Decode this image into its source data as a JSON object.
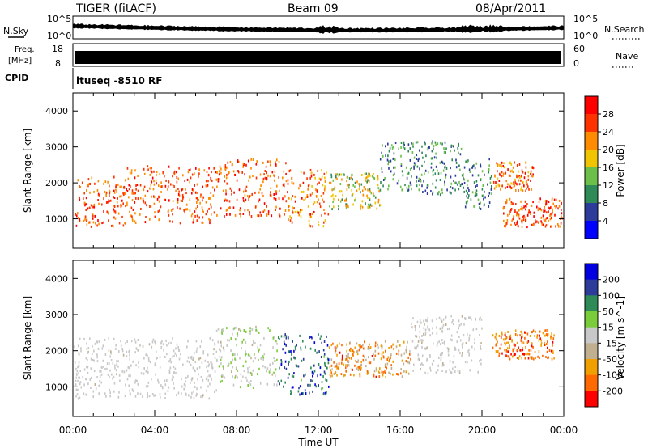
{
  "header": {
    "radar_title": "TIGER (fitACF)",
    "beam_label": "Beam 09",
    "date_label": "08/Apr/2011"
  },
  "top_panels": {
    "nsky_label": "N.Sky",
    "nsearch_label": "N.Search",
    "noise_tick_high": "10^5",
    "noise_tick_low": "10^0",
    "freq_label_1": "Freq.",
    "freq_label_2": "[MHz]",
    "freq_tick_high": "18",
    "freq_tick_low": "8",
    "nave_label": "Nave",
    "nave_tick_high": "60",
    "nave_tick_low": "0",
    "cpid_label": "CPID",
    "cpid_value": "ltuseq -8510 RF"
  },
  "colors": {
    "power_scale": [
      "#0000ff",
      "#2d3c9a",
      "#2e8b57",
      "#6cc04a",
      "#f0c400",
      "#ff8c00",
      "#ff3300",
      "#ff0000"
    ],
    "velocity_scale": [
      "#0000e0",
      "#2d3c9a",
      "#2e8b57",
      "#7acc3a",
      "#c8c8c8",
      "#c0b090",
      "#f0a000",
      "#ff6a00",
      "#ff0000"
    ]
  },
  "chart_data": [
    {
      "type": "heatmap",
      "title": "",
      "xlabel": "Time UT",
      "ylabel": "Slant Range [km]",
      "x_ticks": [
        "00:00",
        "04:00",
        "08:00",
        "12:00",
        "16:00",
        "20:00",
        "00:00"
      ],
      "x_range_hours": [
        0,
        24
      ],
      "y_ticks": [
        1000,
        2000,
        3000,
        4000
      ],
      "ylim": [
        180,
        4500
      ],
      "colorbar": {
        "label": "Power [dB]",
        "ticks": [
          4,
          8,
          12,
          16,
          20,
          24,
          28
        ],
        "range": [
          0,
          32
        ]
      },
      "scatter_regions": [
        {
          "t_start": 0,
          "t_end": 2.5,
          "r_low": 800,
          "r_high": 2200,
          "value_range": [
            20,
            30
          ]
        },
        {
          "t_start": 2.5,
          "t_end": 7,
          "r_low": 900,
          "r_high": 2500,
          "value_range": [
            20,
            30
          ]
        },
        {
          "t_start": 7,
          "t_end": 10.5,
          "r_low": 1100,
          "r_high": 2700,
          "value_range": [
            20,
            31
          ]
        },
        {
          "t_start": 10.5,
          "t_end": 12.5,
          "r_low": 800,
          "r_high": 2400,
          "value_range": [
            16,
            30
          ]
        },
        {
          "t_start": 12.5,
          "t_end": 15,
          "r_low": 1300,
          "r_high": 2300,
          "value_range": [
            8,
            24
          ]
        },
        {
          "t_start": 15,
          "t_end": 19,
          "r_low": 1700,
          "r_high": 3200,
          "value_range": [
            4,
            16
          ]
        },
        {
          "t_start": 19,
          "t_end": 20.5,
          "r_low": 1300,
          "r_high": 2700,
          "value_range": [
            4,
            14
          ]
        },
        {
          "t_start": 20.5,
          "t_end": 22.5,
          "r_low": 1800,
          "r_high": 2600,
          "value_range": [
            16,
            30
          ]
        },
        {
          "t_start": 21,
          "t_end": 24,
          "r_low": 800,
          "r_high": 1600,
          "value_range": [
            20,
            31
          ]
        }
      ]
    },
    {
      "type": "heatmap",
      "title": "",
      "xlabel": "Time UT",
      "ylabel": "Slant Range [km]",
      "x_ticks": [
        "00:00",
        "04:00",
        "08:00",
        "12:00",
        "16:00",
        "20:00",
        "00:00"
      ],
      "x_range_hours": [
        0,
        24
      ],
      "y_ticks": [
        1000,
        2000,
        3000,
        4000
      ],
      "ylim": [
        180,
        4500
      ],
      "colorbar": {
        "label": "Velocity [m s^-1]",
        "ticks": [
          200,
          100,
          50,
          15,
          -15,
          -50,
          -100,
          -200
        ],
        "range": [
          -250,
          250
        ]
      },
      "scatter_regions": [
        {
          "t_start": 0,
          "t_end": 7,
          "r_low": 700,
          "r_high": 2400,
          "value_range": [
            -30,
            20
          ]
        },
        {
          "t_start": 7,
          "t_end": 10,
          "r_low": 1000,
          "r_high": 2700,
          "value_range": [
            -40,
            60
          ]
        },
        {
          "t_start": 10,
          "t_end": 12.5,
          "r_low": 800,
          "r_high": 2500,
          "value_range": [
            80,
            220
          ]
        },
        {
          "t_start": 12.5,
          "t_end": 16.5,
          "r_low": 1300,
          "r_high": 2300,
          "value_range": [
            -200,
            -20
          ]
        },
        {
          "t_start": 16.5,
          "t_end": 20,
          "r_low": 1400,
          "r_high": 3000,
          "value_range": [
            -40,
            20
          ]
        },
        {
          "t_start": 20.5,
          "t_end": 23.5,
          "r_low": 1800,
          "r_high": 2600,
          "value_range": [
            -220,
            -100
          ]
        }
      ]
    }
  ]
}
